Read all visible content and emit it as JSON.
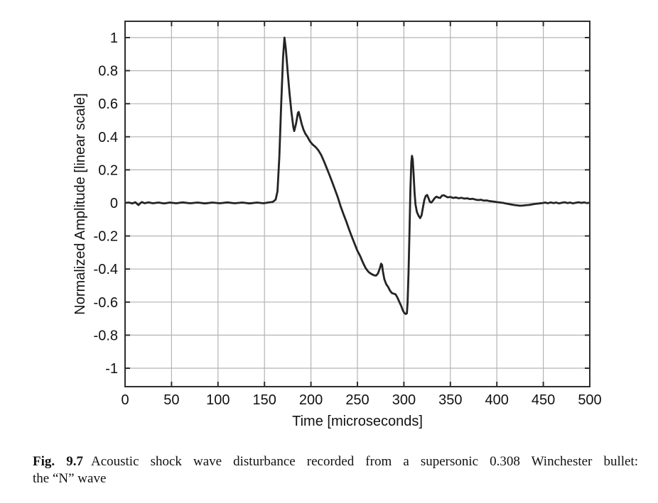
{
  "figure": {
    "caption": {
      "label": "Fig. 9.7",
      "line1": "Acoustic shock wave disturbance recorded from a supersonic 0.308 Winchester bullet:",
      "line2": "the “N” wave"
    }
  },
  "chart_data": {
    "type": "line",
    "title": "",
    "xlabel": "Time [microseconds]",
    "ylabel": "Normalized Amplitude [linear scale]",
    "xlim": [
      0,
      500
    ],
    "ylim": [
      -1.1,
      1.1
    ],
    "xticks": [
      0,
      50,
      100,
      150,
      200,
      250,
      300,
      350,
      400,
      450,
      500
    ],
    "yticks": [
      -1,
      -0.8,
      -0.6,
      -0.4,
      -0.2,
      0,
      0.2,
      0.4,
      0.6,
      0.8,
      1
    ],
    "grid": true,
    "legend": "none",
    "colors": {
      "line": "#242424",
      "grid": "#b4b4b4",
      "axis": "#2e2e2e",
      "text": "#111111",
      "background": "#ffffff"
    },
    "series": [
      {
        "name": "N wave",
        "points": [
          [
            0,
            0
          ],
          [
            4,
            0.002
          ],
          [
            8,
            -0.003
          ],
          [
            11,
            0.004
          ],
          [
            13,
            -0.006
          ],
          [
            14.5,
            -0.013
          ],
          [
            16,
            -0.004
          ],
          [
            18,
            0.005
          ],
          [
            21,
            -0.002
          ],
          [
            25,
            0.003
          ],
          [
            30,
            -0.002
          ],
          [
            36,
            0.002
          ],
          [
            42,
            -0.003
          ],
          [
            48,
            0.002
          ],
          [
            55,
            -0.002
          ],
          [
            62,
            0.003
          ],
          [
            70,
            -0.002
          ],
          [
            78,
            0.002
          ],
          [
            86,
            -0.003
          ],
          [
            94,
            0.002
          ],
          [
            102,
            -0.002
          ],
          [
            110,
            0.003
          ],
          [
            118,
            -0.002
          ],
          [
            126,
            0.002
          ],
          [
            134,
            -0.003
          ],
          [
            142,
            0.002
          ],
          [
            149,
            -0.002
          ],
          [
            155,
            0.003
          ],
          [
            159,
            0.006
          ],
          [
            162,
            0.02
          ],
          [
            164,
            0.07
          ],
          [
            166,
            0.28
          ],
          [
            168,
            0.6
          ],
          [
            170,
            0.88
          ],
          [
            171.5,
            1.0
          ],
          [
            173,
            0.93
          ],
          [
            175,
            0.79
          ],
          [
            177,
            0.66
          ],
          [
            179,
            0.55
          ],
          [
            181,
            0.46
          ],
          [
            182,
            0.435
          ],
          [
            184,
            0.48
          ],
          [
            186,
            0.545
          ],
          [
            186.8,
            0.55
          ],
          [
            188,
            0.525
          ],
          [
            190,
            0.478
          ],
          [
            192,
            0.443
          ],
          [
            194,
            0.418
          ],
          [
            196,
            0.402
          ],
          [
            199,
            0.372
          ],
          [
            202,
            0.352
          ],
          [
            205,
            0.338
          ],
          [
            208,
            0.318
          ],
          [
            211,
            0.29
          ],
          [
            214,
            0.252
          ],
          [
            217,
            0.21
          ],
          [
            220,
            0.168
          ],
          [
            223,
            0.124
          ],
          [
            226,
            0.078
          ],
          [
            229,
            0.032
          ],
          [
            232,
            -0.022
          ],
          [
            235,
            -0.068
          ],
          [
            238,
            -0.112
          ],
          [
            241,
            -0.16
          ],
          [
            244,
            -0.205
          ],
          [
            247,
            -0.248
          ],
          [
            250,
            -0.29
          ],
          [
            253,
            -0.322
          ],
          [
            256,
            -0.362
          ],
          [
            259,
            -0.396
          ],
          [
            262,
            -0.418
          ],
          [
            265,
            -0.43
          ],
          [
            268,
            -0.438
          ],
          [
            270,
            -0.44
          ],
          [
            272,
            -0.428
          ],
          [
            274,
            -0.398
          ],
          [
            275.5,
            -0.368
          ],
          [
            276.5,
            -0.375
          ],
          [
            277.5,
            -0.418
          ],
          [
            279,
            -0.462
          ],
          [
            281,
            -0.492
          ],
          [
            283,
            -0.508
          ],
          [
            285,
            -0.53
          ],
          [
            287,
            -0.545
          ],
          [
            289,
            -0.549
          ],
          [
            291,
            -0.553
          ],
          [
            293,
            -0.572
          ],
          [
            295,
            -0.598
          ],
          [
            297,
            -0.622
          ],
          [
            299,
            -0.652
          ],
          [
            300.5,
            -0.666
          ],
          [
            302,
            -0.672
          ],
          [
            303.2,
            -0.668
          ],
          [
            304,
            -0.6
          ],
          [
            305,
            -0.42
          ],
          [
            306,
            -0.18
          ],
          [
            307,
            0.08
          ],
          [
            308,
            0.245
          ],
          [
            308.7,
            0.285
          ],
          [
            309.5,
            0.262
          ],
          [
            310.5,
            0.17
          ],
          [
            311.5,
            0.06
          ],
          [
            312.5,
            -0.01
          ],
          [
            314,
            -0.055
          ],
          [
            316,
            -0.08
          ],
          [
            317.5,
            -0.092
          ],
          [
            319,
            -0.075
          ],
          [
            320.5,
            -0.028
          ],
          [
            322,
            0.018
          ],
          [
            323.5,
            0.042
          ],
          [
            325,
            0.048
          ],
          [
            326.5,
            0.028
          ],
          [
            328,
            0.006
          ],
          [
            329.5,
            0.002
          ],
          [
            331,
            0.012
          ],
          [
            333,
            0.028
          ],
          [
            335,
            0.038
          ],
          [
            337,
            0.032
          ],
          [
            339,
            0.03
          ],
          [
            341,
            0.044
          ],
          [
            343,
            0.046
          ],
          [
            345,
            0.04
          ],
          [
            347,
            0.034
          ],
          [
            350,
            0.036
          ],
          [
            353,
            0.03
          ],
          [
            356,
            0.033
          ],
          [
            359,
            0.028
          ],
          [
            362,
            0.031
          ],
          [
            365,
            0.026
          ],
          [
            368,
            0.028
          ],
          [
            371,
            0.023
          ],
          [
            374,
            0.025
          ],
          [
            377,
            0.02
          ],
          [
            380,
            0.017
          ],
          [
            383,
            0.019
          ],
          [
            386,
            0.014
          ],
          [
            389,
            0.015
          ],
          [
            392,
            0.011
          ],
          [
            395,
            0.009
          ],
          [
            398,
            0.007
          ],
          [
            401,
            0.004
          ],
          [
            404,
            0.002
          ],
          [
            407,
            0.0
          ],
          [
            410,
            -0.004
          ],
          [
            413,
            -0.007
          ],
          [
            416,
            -0.01
          ],
          [
            419,
            -0.013
          ],
          [
            422,
            -0.015
          ],
          [
            425,
            -0.017
          ],
          [
            428,
            -0.016
          ],
          [
            431,
            -0.014
          ],
          [
            434,
            -0.013
          ],
          [
            437,
            -0.01
          ],
          [
            440,
            -0.007
          ],
          [
            443,
            -0.005
          ],
          [
            446,
            -0.003
          ],
          [
            449,
            -0.001
          ],
          [
            452,
            0.002
          ],
          [
            455,
            -0.002
          ],
          [
            458,
            0.003
          ],
          [
            461,
            -0.001
          ],
          [
            464,
            0.002
          ],
          [
            467,
            -0.003
          ],
          [
            470,
            0.001
          ],
          [
            473,
            0.004
          ],
          [
            476,
            -0.001
          ],
          [
            479,
            0.002
          ],
          [
            482,
            -0.003
          ],
          [
            485,
            0.001
          ],
          [
            488,
            0.004
          ],
          [
            491,
            0.0
          ],
          [
            494,
            0.003
          ],
          [
            497,
            -0.001
          ],
          [
            500,
            0.001
          ]
        ]
      }
    ]
  }
}
